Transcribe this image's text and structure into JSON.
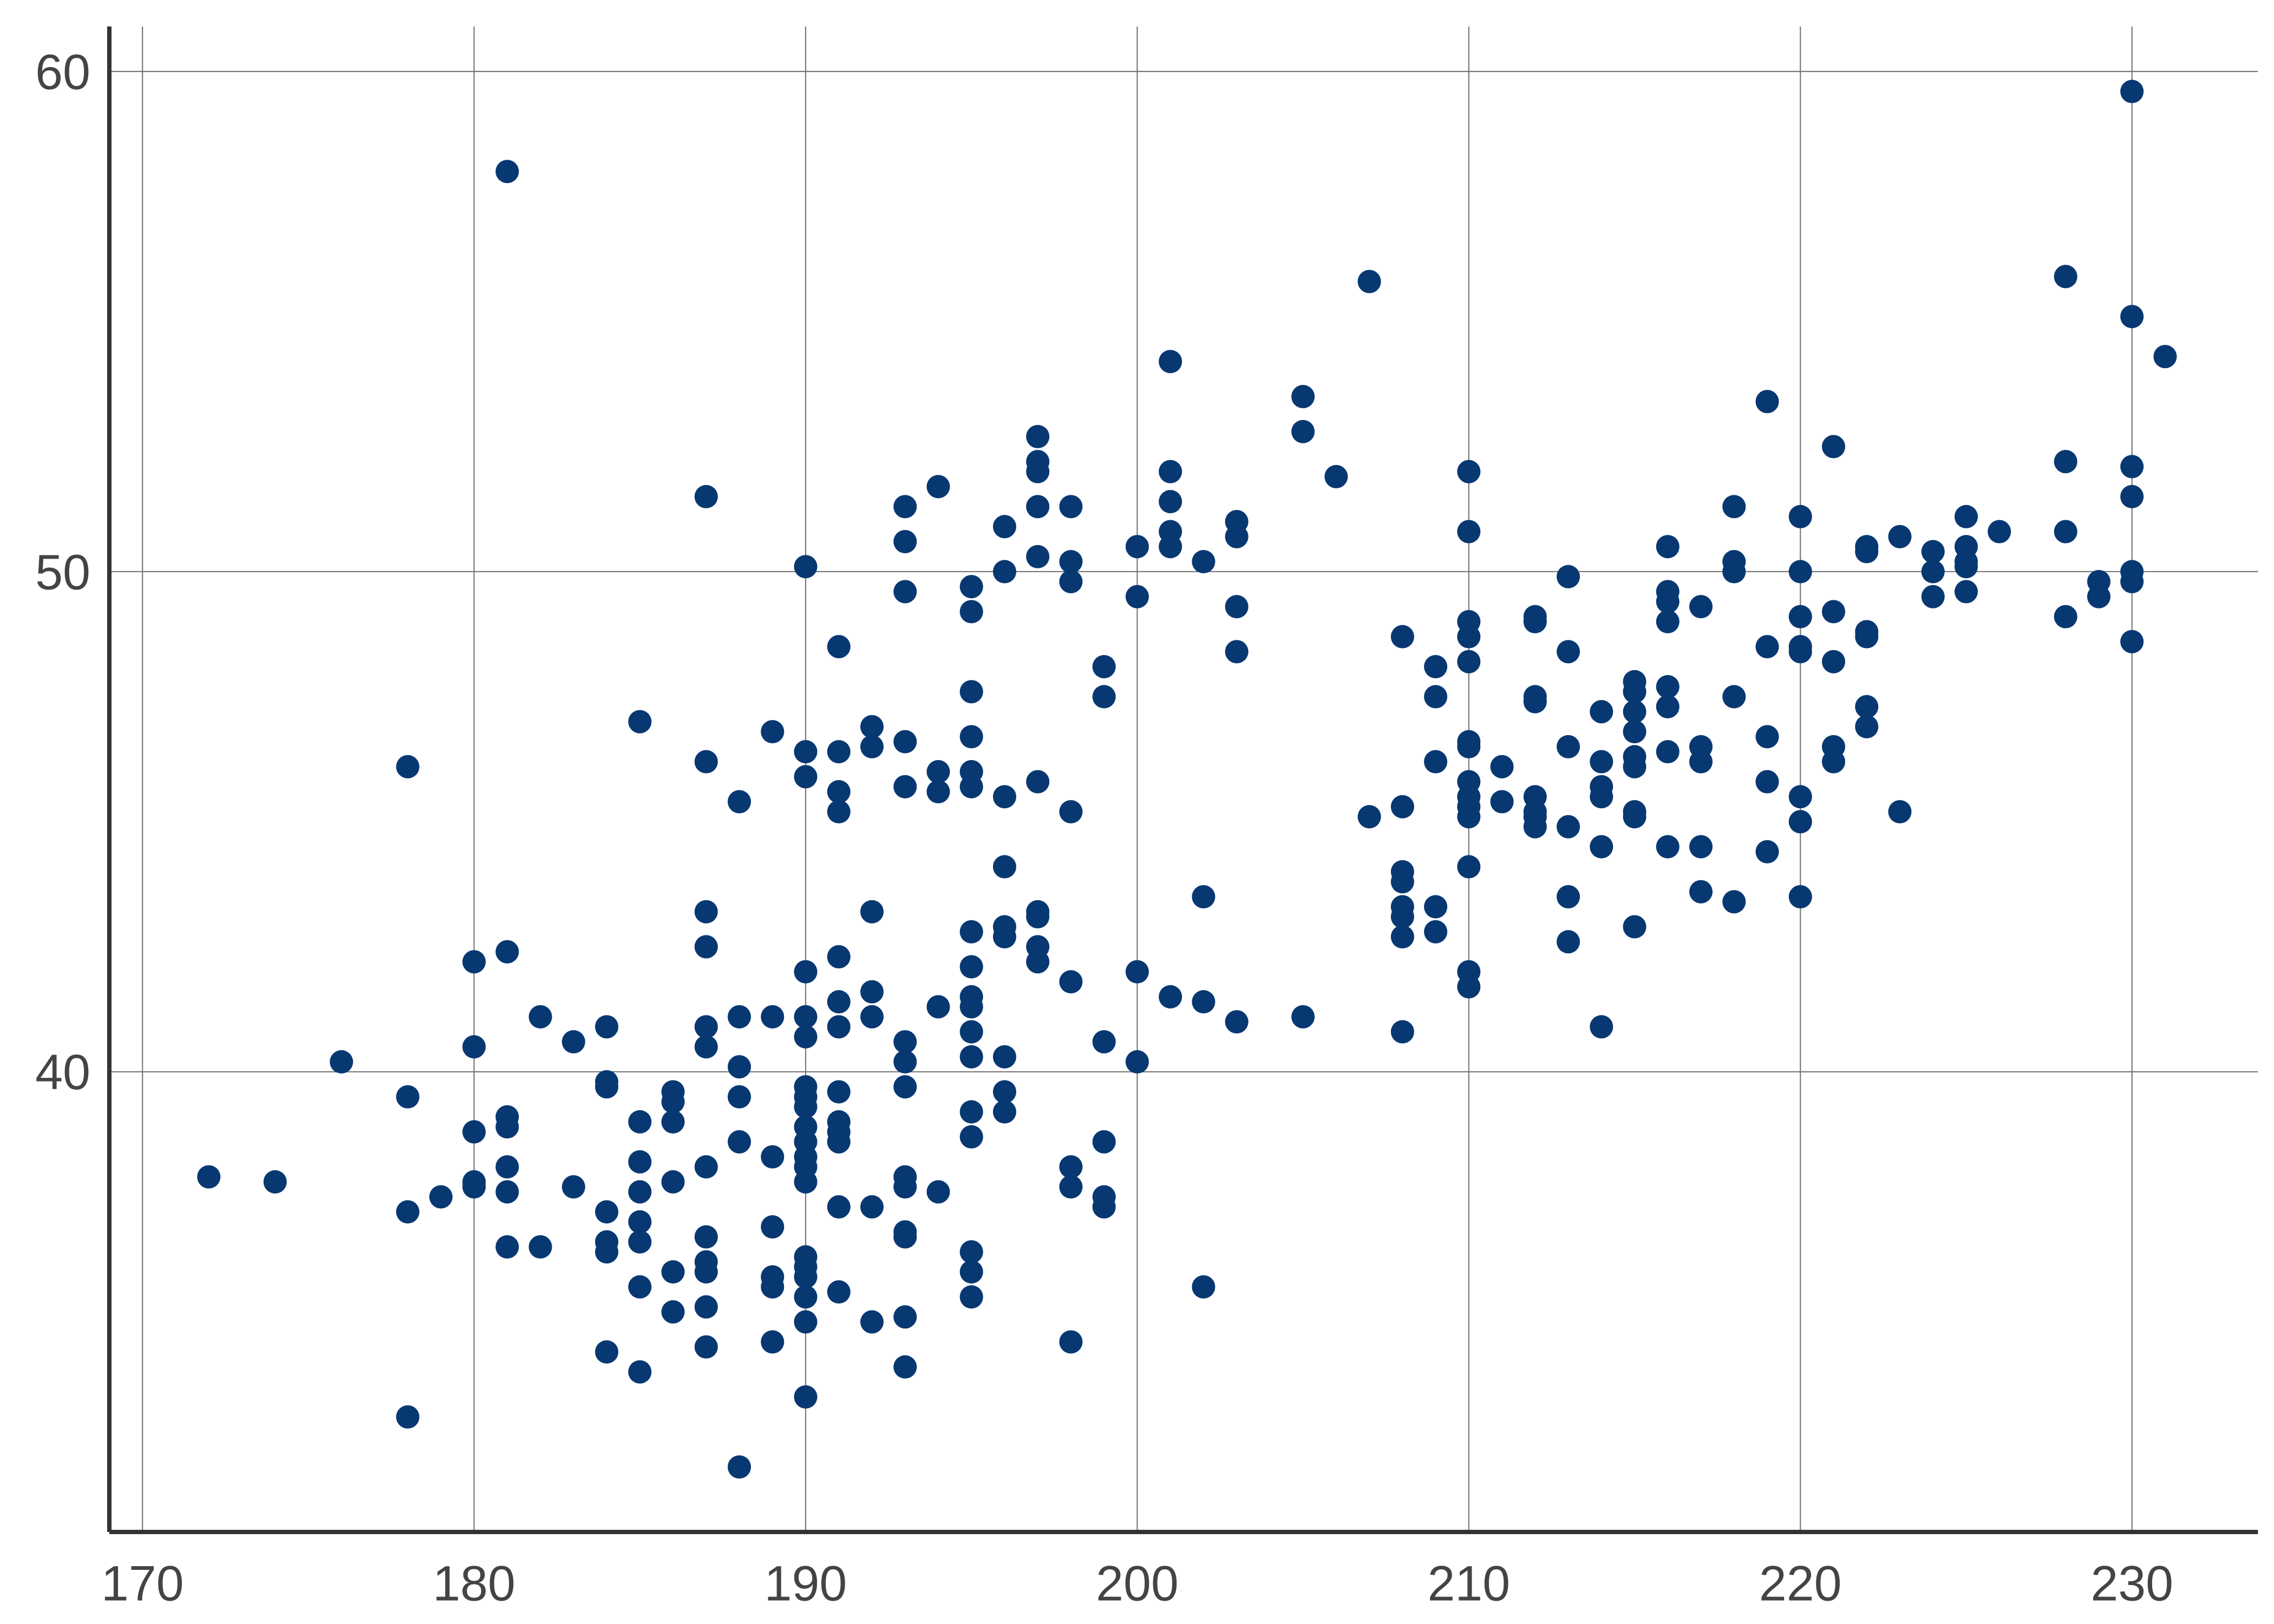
{
  "chart_data": {
    "type": "scatter",
    "title": "",
    "xlabel": "",
    "ylabel": "",
    "xlim": [
      169,
      233.8
    ],
    "ylim": [
      30.8,
      60.9
    ],
    "xticks": [
      "170",
      "180",
      "190",
      "200",
      "210",
      "220",
      "230"
    ],
    "yticks": [
      "40",
      "50",
      "60"
    ],
    "grid": true,
    "marker_color": "#083872",
    "points": [
      [
        172,
        37.9
      ],
      [
        174,
        37.8
      ],
      [
        176,
        40.2
      ],
      [
        178,
        46.1
      ],
      [
        178,
        39.5
      ],
      [
        178,
        37.2
      ],
      [
        178,
        33.1
      ],
      [
        179,
        37.5
      ],
      [
        180,
        42.2
      ],
      [
        180,
        40.5
      ],
      [
        180,
        38.8
      ],
      [
        180,
        37.8
      ],
      [
        180,
        37.7
      ],
      [
        181,
        58.0
      ],
      [
        181,
        42.4
      ],
      [
        181,
        39.1
      ],
      [
        181,
        38.9
      ],
      [
        181,
        38.1
      ],
      [
        181,
        37.6
      ],
      [
        181,
        36.5
      ],
      [
        182,
        41.1
      ],
      [
        182,
        36.5
      ],
      [
        183,
        40.6
      ],
      [
        183,
        37.7
      ],
      [
        184,
        40.9
      ],
      [
        184,
        39.8
      ],
      [
        184,
        39.7
      ],
      [
        184,
        37.2
      ],
      [
        184,
        36.6
      ],
      [
        184,
        36.4
      ],
      [
        184,
        34.4
      ],
      [
        185,
        47.0
      ],
      [
        185,
        39.0
      ],
      [
        185,
        38.2
      ],
      [
        185,
        37.6
      ],
      [
        185,
        37.0
      ],
      [
        185,
        36.6
      ],
      [
        185,
        35.7
      ],
      [
        185,
        34.0
      ],
      [
        186,
        39.6
      ],
      [
        186,
        39.4
      ],
      [
        186,
        39.0
      ],
      [
        186,
        37.8
      ],
      [
        186,
        36.0
      ],
      [
        186,
        35.2
      ],
      [
        187,
        51.5
      ],
      [
        187,
        46.2
      ],
      [
        187,
        43.2
      ],
      [
        187,
        42.5
      ],
      [
        187,
        40.9
      ],
      [
        187,
        40.5
      ],
      [
        187,
        38.1
      ],
      [
        187,
        36.7
      ],
      [
        187,
        36.2
      ],
      [
        187,
        36.0
      ],
      [
        187,
        35.3
      ],
      [
        187,
        34.5
      ],
      [
        188,
        45.4
      ],
      [
        188,
        41.1
      ],
      [
        188,
        40.1
      ],
      [
        188,
        39.5
      ],
      [
        188,
        38.6
      ],
      [
        188,
        32.1
      ],
      [
        189,
        46.8
      ],
      [
        189,
        41.1
      ],
      [
        189,
        38.3
      ],
      [
        189,
        36.9
      ],
      [
        189,
        35.9
      ],
      [
        189,
        35.7
      ],
      [
        189,
        34.6
      ],
      [
        190,
        50.1
      ],
      [
        190,
        46.4
      ],
      [
        190,
        45.9
      ],
      [
        190,
        42.0
      ],
      [
        190,
        41.1
      ],
      [
        190,
        40.7
      ],
      [
        190,
        39.7
      ],
      [
        190,
        39.5
      ],
      [
        190,
        39.3
      ],
      [
        190,
        38.9
      ],
      [
        190,
        38.6
      ],
      [
        190,
        38.3
      ],
      [
        190,
        38.1
      ],
      [
        190,
        37.8
      ],
      [
        190,
        36.3
      ],
      [
        190,
        36.1
      ],
      [
        190,
        35.9
      ],
      [
        190,
        35.5
      ],
      [
        190,
        35.0
      ],
      [
        190,
        33.5
      ],
      [
        191,
        48.5
      ],
      [
        191,
        46.4
      ],
      [
        191,
        45.6
      ],
      [
        191,
        45.2
      ],
      [
        191,
        42.3
      ],
      [
        191,
        41.4
      ],
      [
        191,
        40.9
      ],
      [
        191,
        39.6
      ],
      [
        191,
        39.0
      ],
      [
        191,
        38.8
      ],
      [
        191,
        38.6
      ],
      [
        191,
        37.3
      ],
      [
        191,
        35.6
      ],
      [
        192,
        46.9
      ],
      [
        192,
        46.5
      ],
      [
        192,
        43.2
      ],
      [
        192,
        41.6
      ],
      [
        192,
        41.1
      ],
      [
        192,
        37.3
      ],
      [
        192,
        35.0
      ],
      [
        193,
        51.3
      ],
      [
        193,
        50.6
      ],
      [
        193,
        49.6
      ],
      [
        193,
        46.6
      ],
      [
        193,
        45.7
      ],
      [
        193,
        40.6
      ],
      [
        193,
        40.2
      ],
      [
        193,
        39.7
      ],
      [
        193,
        37.9
      ],
      [
        193,
        37.7
      ],
      [
        193,
        36.8
      ],
      [
        193,
        36.7
      ],
      [
        193,
        35.1
      ],
      [
        193,
        34.1
      ],
      [
        194,
        51.7
      ],
      [
        194,
        46.0
      ],
      [
        194,
        45.6
      ],
      [
        194,
        41.3
      ],
      [
        194,
        37.6
      ],
      [
        195,
        49.7
      ],
      [
        195,
        49.2
      ],
      [
        195,
        47.6
      ],
      [
        195,
        46.7
      ],
      [
        195,
        46.0
      ],
      [
        195,
        45.7
      ],
      [
        195,
        42.8
      ],
      [
        195,
        42.1
      ],
      [
        195,
        41.5
      ],
      [
        195,
        41.3
      ],
      [
        195,
        40.8
      ],
      [
        195,
        40.3
      ],
      [
        195,
        39.2
      ],
      [
        195,
        38.7
      ],
      [
        195,
        36.4
      ],
      [
        195,
        36.0
      ],
      [
        195,
        35.5
      ],
      [
        196,
        50.9
      ],
      [
        196,
        50.0
      ],
      [
        196,
        45.5
      ],
      [
        196,
        44.1
      ],
      [
        196,
        42.9
      ],
      [
        196,
        42.7
      ],
      [
        196,
        40.3
      ],
      [
        196,
        39.6
      ],
      [
        196,
        39.2
      ],
      [
        197,
        52.7
      ],
      [
        197,
        52.2
      ],
      [
        197,
        52.0
      ],
      [
        197,
        51.3
      ],
      [
        197,
        50.3
      ],
      [
        197,
        45.8
      ],
      [
        197,
        43.2
      ],
      [
        197,
        43.1
      ],
      [
        197,
        42.5
      ],
      [
        197,
        42.2
      ],
      [
        198,
        51.3
      ],
      [
        198,
        50.2
      ],
      [
        198,
        49.8
      ],
      [
        198,
        45.2
      ],
      [
        198,
        41.8
      ],
      [
        198,
        38.1
      ],
      [
        198,
        37.7
      ],
      [
        198,
        34.6
      ],
      [
        199,
        48.1
      ],
      [
        199,
        47.5
      ],
      [
        199,
        40.6
      ],
      [
        199,
        38.6
      ],
      [
        199,
        37.5
      ],
      [
        199,
        37.3
      ],
      [
        200,
        50.5
      ],
      [
        200,
        49.5
      ],
      [
        200,
        42.0
      ],
      [
        200,
        40.2
      ],
      [
        201,
        54.2
      ],
      [
        201,
        52.0
      ],
      [
        201,
        51.4
      ],
      [
        201,
        50.8
      ],
      [
        201,
        50.5
      ],
      [
        201,
        41.5
      ],
      [
        202,
        50.2
      ],
      [
        202,
        43.5
      ],
      [
        202,
        41.4
      ],
      [
        202,
        35.7
      ],
      [
        203,
        51.0
      ],
      [
        203,
        50.7
      ],
      [
        203,
        49.3
      ],
      [
        203,
        48.4
      ],
      [
        203,
        41.0
      ],
      [
        205,
        53.5
      ],
      [
        205,
        52.8
      ],
      [
        205,
        41.1
      ],
      [
        206,
        51.9
      ],
      [
        207,
        55.8
      ],
      [
        207,
        45.1
      ],
      [
        208,
        48.7
      ],
      [
        208,
        45.3
      ],
      [
        208,
        44.0
      ],
      [
        208,
        43.8
      ],
      [
        208,
        43.3
      ],
      [
        208,
        43.1
      ],
      [
        208,
        42.7
      ],
      [
        208,
        40.8
      ],
      [
        209,
        48.1
      ],
      [
        209,
        47.5
      ],
      [
        209,
        46.2
      ],
      [
        209,
        43.3
      ],
      [
        209,
        42.8
      ],
      [
        210,
        52.0
      ],
      [
        210,
        50.8
      ],
      [
        210,
        49.0
      ],
      [
        210,
        48.7
      ],
      [
        210,
        48.2
      ],
      [
        210,
        46.6
      ],
      [
        210,
        46.5
      ],
      [
        210,
        45.8
      ],
      [
        210,
        45.5
      ],
      [
        210,
        45.3
      ],
      [
        210,
        45.1
      ],
      [
        210,
        44.1
      ],
      [
        210,
        42.0
      ],
      [
        210,
        41.7
      ],
      [
        211,
        46.1
      ],
      [
        211,
        45.4
      ],
      [
        212,
        49.1
      ],
      [
        212,
        49.0
      ],
      [
        212,
        47.5
      ],
      [
        212,
        47.4
      ],
      [
        212,
        45.5
      ],
      [
        212,
        45.2
      ],
      [
        212,
        45.1
      ],
      [
        212,
        44.9
      ],
      [
        213,
        49.9
      ],
      [
        213,
        48.4
      ],
      [
        213,
        46.5
      ],
      [
        213,
        44.9
      ],
      [
        213,
        43.5
      ],
      [
        213,
        42.6
      ],
      [
        214,
        47.2
      ],
      [
        214,
        46.2
      ],
      [
        214,
        45.7
      ],
      [
        214,
        45.5
      ],
      [
        214,
        44.5
      ],
      [
        214,
        40.9
      ],
      [
        215,
        47.8
      ],
      [
        215,
        47.6
      ],
      [
        215,
        47.2
      ],
      [
        215,
        46.8
      ],
      [
        215,
        46.3
      ],
      [
        215,
        46.1
      ],
      [
        215,
        45.2
      ],
      [
        215,
        45.1
      ],
      [
        215,
        42.9
      ],
      [
        216,
        50.5
      ],
      [
        216,
        49.6
      ],
      [
        216,
        49.4
      ],
      [
        216,
        49.0
      ],
      [
        216,
        47.7
      ],
      [
        216,
        47.3
      ],
      [
        216,
        46.4
      ],
      [
        216,
        44.5
      ],
      [
        217,
        49.3
      ],
      [
        217,
        46.5
      ],
      [
        217,
        46.2
      ],
      [
        217,
        44.5
      ],
      [
        217,
        43.6
      ],
      [
        218,
        51.3
      ],
      [
        218,
        50.2
      ],
      [
        218,
        50.0
      ],
      [
        218,
        47.5
      ],
      [
        218,
        43.4
      ],
      [
        219,
        53.4
      ],
      [
        219,
        48.5
      ],
      [
        219,
        46.7
      ],
      [
        219,
        45.8
      ],
      [
        219,
        44.4
      ],
      [
        220,
        51.1
      ],
      [
        220,
        50.0
      ],
      [
        220,
        49.1
      ],
      [
        220,
        48.5
      ],
      [
        220,
        48.4
      ],
      [
        220,
        45.5
      ],
      [
        220,
        45.0
      ],
      [
        220,
        43.5
      ],
      [
        221,
        52.5
      ],
      [
        221,
        49.2
      ],
      [
        221,
        48.2
      ],
      [
        221,
        46.5
      ],
      [
        221,
        46.2
      ],
      [
        222,
        50.5
      ],
      [
        222,
        50.4
      ],
      [
        222,
        48.8
      ],
      [
        222,
        48.7
      ],
      [
        222,
        47.3
      ],
      [
        222,
        46.9
      ],
      [
        223,
        50.7
      ],
      [
        223,
        45.2
      ],
      [
        224,
        50.4
      ],
      [
        224,
        50.0
      ],
      [
        224,
        49.5
      ],
      [
        225,
        51.1
      ],
      [
        225,
        50.5
      ],
      [
        225,
        50.2
      ],
      [
        225,
        50.1
      ],
      [
        225,
        49.6
      ],
      [
        226,
        50.8
      ],
      [
        228,
        55.9
      ],
      [
        228,
        52.2
      ],
      [
        228,
        50.8
      ],
      [
        228,
        49.1
      ],
      [
        229,
        49.8
      ],
      [
        229,
        49.5
      ],
      [
        230,
        59.6
      ],
      [
        230,
        55.1
      ],
      [
        230,
        52.1
      ],
      [
        230,
        51.5
      ],
      [
        230,
        50.0
      ],
      [
        230,
        49.8
      ],
      [
        230,
        48.6
      ],
      [
        231,
        54.3
      ]
    ]
  }
}
